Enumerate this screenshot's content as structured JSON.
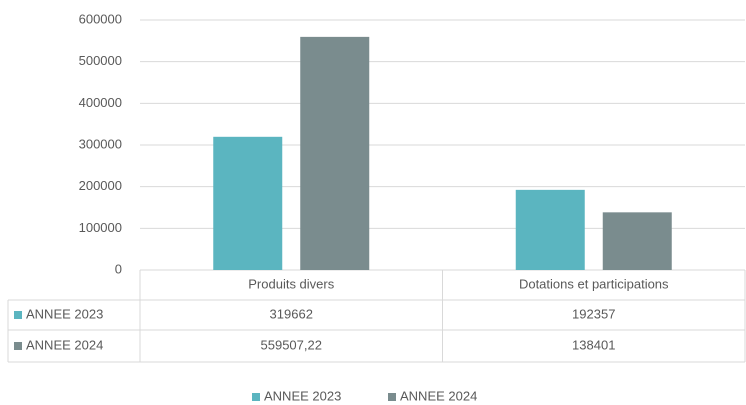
{
  "chart_data": {
    "type": "bar",
    "categories": [
      "Produits divers",
      "Dotations et participations"
    ],
    "series": [
      {
        "name": "ANNEE 2023",
        "color": "#5bb5c0",
        "values": [
          319662,
          192357
        ]
      },
      {
        "name": "ANNEE 2024",
        "color": "#7a8c8e",
        "values": [
          559507.22,
          138401
        ],
        "value_labels": [
          "559507,22",
          "138401"
        ]
      }
    ],
    "ylim": [
      0,
      600000
    ],
    "yticks": [
      0,
      100000,
      200000,
      300000,
      400000,
      500000,
      600000
    ],
    "grid": true,
    "legend": "bottom"
  }
}
